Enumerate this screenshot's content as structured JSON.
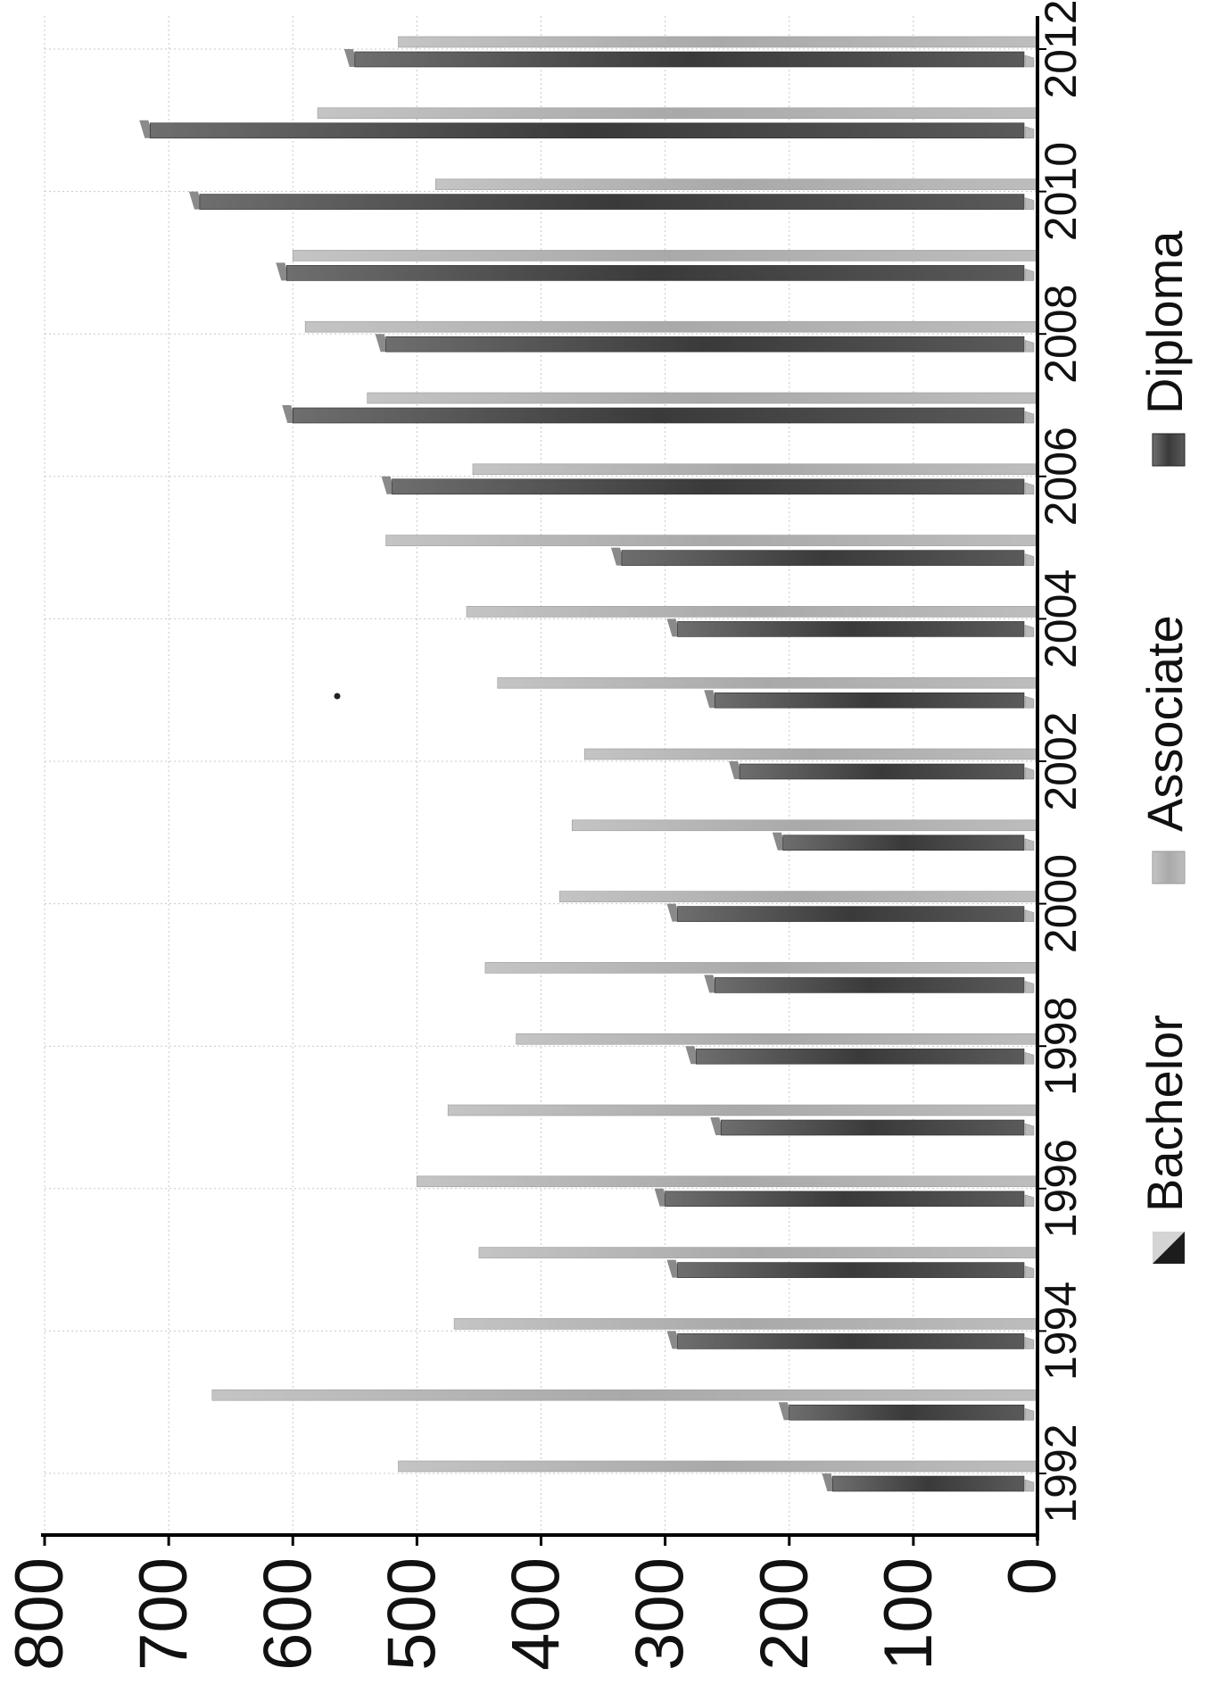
{
  "chart_data": {
    "type": "bar",
    "orientation": "rotated",
    "title": "",
    "xlabel": "",
    "ylabel": "",
    "ylim": [
      0,
      800
    ],
    "yticks": [
      "0",
      "100",
      "200",
      "300",
      "400",
      "500",
      "600",
      "700",
      "800"
    ],
    "years": [
      1992,
      1993,
      1994,
      1995,
      1996,
      1997,
      1998,
      1999,
      2000,
      2001,
      2002,
      2003,
      2004,
      2005,
      2006,
      2007,
      2008,
      2009,
      2010,
      2011,
      2012
    ],
    "xtick_labels": [
      "1992",
      "1994",
      "1996",
      "1998",
      "2000",
      "2002",
      "2004",
      "2006",
      "2008",
      "2010",
      "2012"
    ],
    "grid": true,
    "legend_placement": "bottom",
    "series": [
      {
        "name": "Bachelor",
        "color": "#9a9a9a",
        "values": [
          0,
          0,
          0,
          0,
          0,
          0,
          0,
          0,
          0,
          0,
          0,
          0,
          0,
          0,
          0,
          0,
          0,
          0,
          0,
          0,
          0
        ]
      },
      {
        "name": "Associate",
        "color": "#b8b8b8",
        "values": [
          515,
          665,
          470,
          450,
          500,
          475,
          420,
          445,
          385,
          375,
          365,
          435,
          460,
          525,
          455,
          540,
          590,
          600,
          485,
          580,
          515
        ]
      },
      {
        "name": "Diploma",
        "color": "#404040",
        "values": [
          165,
          200,
          290,
          290,
          300,
          255,
          275,
          260,
          290,
          205,
          240,
          260,
          290,
          335,
          520,
          600,
          525,
          605,
          675,
          715,
          550
        ]
      }
    ]
  }
}
